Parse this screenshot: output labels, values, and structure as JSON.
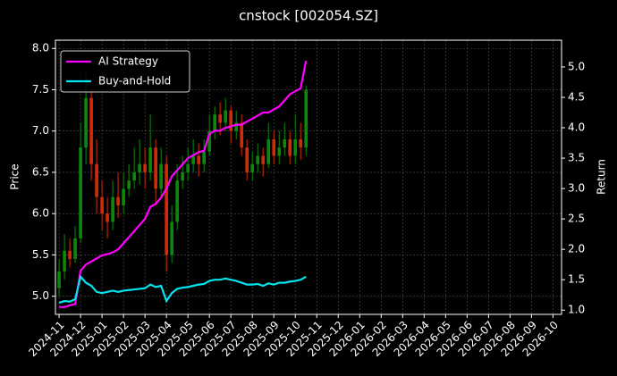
{
  "chart_data": {
    "type": "candlestick",
    "title": "cnstock [002054.SZ]",
    "ylabel": "Price",
    "y2label": "Return",
    "x": [
      0,
      0.25,
      0.5,
      0.75,
      1,
      1.25,
      1.5,
      1.75,
      2,
      2.25,
      2.5,
      2.75,
      3,
      3.25,
      3.5,
      3.75,
      4,
      4.25,
      4.5,
      4.75,
      5,
      5.25,
      5.5,
      5.75,
      6,
      6.25,
      6.5,
      6.75,
      7,
      7.25,
      7.5,
      7.75,
      8,
      8.25,
      8.5,
      8.75,
      9,
      9.25,
      9.5,
      9.75,
      10,
      10.25,
      10.5,
      10.75,
      11,
      11.25,
      11.5
    ],
    "open": [
      5.1,
      5.3,
      5.55,
      5.45,
      5.7,
      6.8,
      7.4,
      6.6,
      6.2,
      6.0,
      5.9,
      6.2,
      6.1,
      6.3,
      6.4,
      6.5,
      6.6,
      6.5,
      6.8,
      6.3,
      6.6,
      5.5,
      5.9,
      6.4,
      6.5,
      6.6,
      6.7,
      6.6,
      6.75,
      7.0,
      7.2,
      7.1,
      7.25,
      7.0,
      7.1,
      6.8,
      6.5,
      6.6,
      6.7,
      6.6,
      6.9,
      6.7,
      6.8,
      6.9,
      6.7,
      6.9,
      6.8
    ],
    "high": [
      5.45,
      5.75,
      5.7,
      5.85,
      7.1,
      7.7,
      7.5,
      6.9,
      6.4,
      6.2,
      6.4,
      6.5,
      6.5,
      6.6,
      6.8,
      6.9,
      6.8,
      7.2,
      6.9,
      6.8,
      6.7,
      6.1,
      6.6,
      6.7,
      6.8,
      6.9,
      6.85,
      6.9,
      7.2,
      7.3,
      7.35,
      7.4,
      7.3,
      7.25,
      7.2,
      6.9,
      6.75,
      6.85,
      6.8,
      7.1,
      7.0,
      7.0,
      7.1,
      7.0,
      7.2,
      7.1,
      7.55
    ],
    "low": [
      5.0,
      5.2,
      5.35,
      5.4,
      5.65,
      6.6,
      6.4,
      6.0,
      5.8,
      5.7,
      5.8,
      5.95,
      6.0,
      6.2,
      6.3,
      6.35,
      6.3,
      6.4,
      6.1,
      6.2,
      5.3,
      5.4,
      5.8,
      6.3,
      6.4,
      6.5,
      6.45,
      6.5,
      6.7,
      6.9,
      6.95,
      7.0,
      6.85,
      6.9,
      6.7,
      6.4,
      6.4,
      6.5,
      6.45,
      6.55,
      6.6,
      6.6,
      6.7,
      6.6,
      6.6,
      6.65,
      6.7
    ],
    "close": [
      5.3,
      5.55,
      5.45,
      5.7,
      6.8,
      7.4,
      6.6,
      6.2,
      6.0,
      5.9,
      6.2,
      6.1,
      6.3,
      6.4,
      6.5,
      6.6,
      6.5,
      6.8,
      6.3,
      6.6,
      5.5,
      5.9,
      6.4,
      6.5,
      6.6,
      6.7,
      6.6,
      6.75,
      7.0,
      7.2,
      7.1,
      7.25,
      7.0,
      7.1,
      6.8,
      6.5,
      6.6,
      6.7,
      6.6,
      6.9,
      6.7,
      6.8,
      6.9,
      6.7,
      6.9,
      6.8,
      7.5
    ],
    "up_color": "#0a8a0a",
    "down_color": "#d42a0a",
    "series": [
      {
        "name": "AI Strategy",
        "color": "#ff00ff",
        "axis": "y2",
        "values": [
          1.05,
          1.05,
          1.08,
          1.1,
          1.65,
          1.75,
          1.8,
          1.85,
          1.9,
          1.92,
          1.95,
          2.0,
          2.1,
          2.2,
          2.3,
          2.4,
          2.5,
          2.7,
          2.75,
          2.85,
          3.0,
          3.2,
          3.3,
          3.4,
          3.5,
          3.55,
          3.6,
          3.62,
          3.9,
          3.95,
          3.95,
          4.0,
          4.02,
          4.05,
          4.05,
          4.1,
          4.15,
          4.2,
          4.25,
          4.25,
          4.3,
          4.35,
          4.45,
          4.55,
          4.6,
          4.65,
          5.1
        ]
      },
      {
        "name": "Buy-and-Hold",
        "color": "#00e5ee",
        "axis": "y2",
        "values": [
          1.12,
          1.15,
          1.14,
          1.18,
          1.55,
          1.45,
          1.4,
          1.3,
          1.28,
          1.3,
          1.32,
          1.3,
          1.32,
          1.33,
          1.34,
          1.35,
          1.36,
          1.42,
          1.38,
          1.4,
          1.15,
          1.28,
          1.35,
          1.37,
          1.38,
          1.4,
          1.42,
          1.43,
          1.48,
          1.5,
          1.5,
          1.52,
          1.5,
          1.48,
          1.45,
          1.42,
          1.42,
          1.43,
          1.4,
          1.44,
          1.42,
          1.45,
          1.45,
          1.47,
          1.48,
          1.5,
          1.55
        ]
      }
    ],
    "xlim": [
      -0.17,
      23.4
    ],
    "xticks": [
      {
        "value": 0,
        "label": "2024-11"
      },
      {
        "value": 1,
        "label": "2024-12"
      },
      {
        "value": 2,
        "label": "2025-01"
      },
      {
        "value": 3,
        "label": "2025-02"
      },
      {
        "value": 4,
        "label": "2025-03"
      },
      {
        "value": 5,
        "label": "2025-04"
      },
      {
        "value": 6,
        "label": "2025-05"
      },
      {
        "value": 7,
        "label": "2025-06"
      },
      {
        "value": 8,
        "label": "2025-07"
      },
      {
        "value": 9,
        "label": "2025-08"
      },
      {
        "value": 10,
        "label": "2025-09"
      },
      {
        "value": 11,
        "label": "2025-10"
      },
      {
        "value": 12,
        "label": "2025-11"
      },
      {
        "value": 13,
        "label": "2025-12"
      },
      {
        "value": 14,
        "label": "2026-01"
      },
      {
        "value": 15,
        "label": "2026-02"
      },
      {
        "value": 16,
        "label": "2026-03"
      },
      {
        "value": 17,
        "label": "2026-04"
      },
      {
        "value": 18,
        "label": "2026-05"
      },
      {
        "value": 19,
        "label": "2026-06"
      },
      {
        "value": 20,
        "label": "2026-07"
      },
      {
        "value": 21,
        "label": "2026-08"
      },
      {
        "value": 22,
        "label": "2026-09"
      },
      {
        "value": 23,
        "label": "2026-10"
      }
    ],
    "ylim": [
      4.78,
      8.1
    ],
    "yticks": [
      {
        "value": 5,
        "label": "5.0"
      },
      5.5,
      {
        "value": 6,
        "label": "6.0"
      },
      6.5,
      {
        "value": 7,
        "label": "7.0"
      },
      7.5,
      {
        "value": 8,
        "label": "8.0"
      }
    ],
    "y2lim": [
      0.93,
      5.44
    ],
    "y2ticks": [
      {
        "value": 1,
        "label": "1.0"
      },
      1.5,
      {
        "value": 2,
        "label": "2.0"
      },
      2.5,
      {
        "value": 3,
        "label": "3.0"
      },
      3.5,
      {
        "value": 4,
        "label": "4.0"
      },
      4.5,
      {
        "value": 5,
        "label": "5.0"
      }
    ],
    "grid": true,
    "legend": "upper left"
  }
}
